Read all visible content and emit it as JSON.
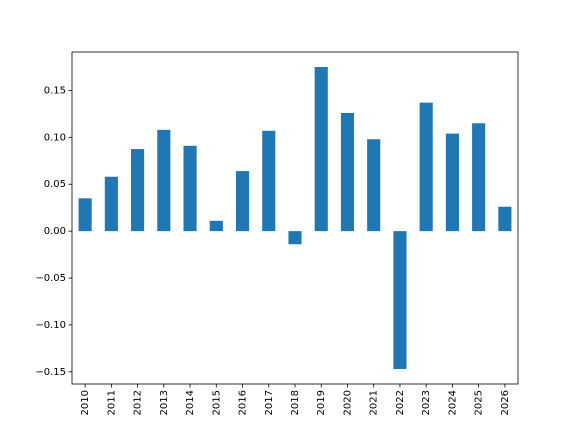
{
  "chart_data": {
    "type": "bar",
    "categories": [
      "2010",
      "2011",
      "2012",
      "2013",
      "2014",
      "2015",
      "2016",
      "2017",
      "2018",
      "2019",
      "2020",
      "2021",
      "2022",
      "2023",
      "2024",
      "2025",
      "2026"
    ],
    "values": [
      0.035,
      0.058,
      0.0875,
      0.108,
      0.091,
      0.011,
      0.064,
      0.107,
      -0.014,
      0.175,
      0.126,
      0.098,
      -0.147,
      0.137,
      0.104,
      0.115,
      0.026
    ],
    "color": "#1f77b4",
    "ylim": [
      -0.163,
      0.191
    ],
    "yticks": [
      {
        "value": -0.15,
        "label": "−0.15"
      },
      {
        "value": -0.1,
        "label": "−0.10"
      },
      {
        "value": -0.05,
        "label": "−0.05"
      },
      {
        "value": 0,
        "label": "0.00"
      },
      0.05,
      {
        "value": 0.1,
        "label": "0.10"
      },
      0.15
    ],
    "grid": false
  }
}
